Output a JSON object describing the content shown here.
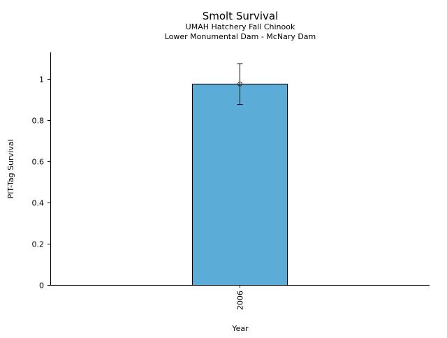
{
  "chart_data": {
    "type": "bar",
    "title": "Smolt Survival",
    "subtitle": [
      "UMAH Hatchery Fall Chinook",
      "Lower Monumental Dam - McNary Dam"
    ],
    "xlabel": "Year",
    "ylabel": "PIT-Tag Survival",
    "categories": [
      "2006"
    ],
    "values": [
      0.975
    ],
    "error_low": [
      0.876
    ],
    "error_high": [
      1.074
    ],
    "ylim": [
      0,
      1.13
    ],
    "yticks": [
      0,
      0.2,
      0.4,
      0.6,
      0.8,
      1
    ],
    "ytick_labels": [
      "0",
      "0.2",
      "0.4",
      "0.6",
      "0.8",
      "1"
    ],
    "grid": false,
    "bar_color": "#5bacd6"
  }
}
